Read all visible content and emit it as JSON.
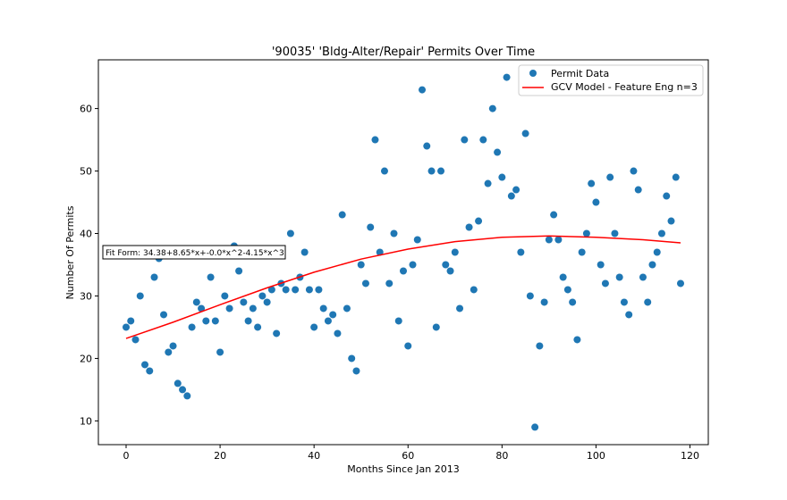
{
  "chart_data": {
    "type": "scatter",
    "title": "'90035' 'Bldg-Alter/Repair' Permits Over Time",
    "xlabel": "Months Since Jan 2013",
    "ylabel": "Number Of Permits",
    "xlim": [
      -5.9,
      123.9
    ],
    "ylim": [
      6.2,
      67.8
    ],
    "xticks": [
      0,
      20,
      40,
      60,
      80,
      100,
      120
    ],
    "yticks": [
      10,
      20,
      30,
      40,
      50,
      60
    ],
    "grid": false,
    "legend_position": "top-right",
    "annotation": "Fit Form: 34.38+8.65*x+-0.0*x^2-4.15*x^3",
    "series": [
      {
        "name": "Permit Data",
        "kind": "scatter",
        "color": "#1f77b4",
        "x": [
          0,
          1,
          2,
          3,
          4,
          5,
          6,
          7,
          8,
          9,
          10,
          11,
          12,
          13,
          14,
          15,
          16,
          17,
          18,
          19,
          20,
          21,
          22,
          23,
          24,
          25,
          26,
          27,
          28,
          29,
          30,
          31,
          32,
          33,
          34,
          35,
          36,
          37,
          38,
          39,
          40,
          41,
          42,
          43,
          44,
          45,
          46,
          47,
          48,
          49,
          50,
          51,
          52,
          53,
          54,
          55,
          56,
          57,
          58,
          59,
          60,
          61,
          62,
          63,
          64,
          65,
          66,
          67,
          68,
          69,
          70,
          71,
          72,
          73,
          74,
          75,
          76,
          77,
          78,
          79,
          80,
          81,
          82,
          83,
          84,
          85,
          86,
          87,
          88,
          89,
          90,
          91,
          92,
          93,
          94,
          95,
          96,
          97,
          98,
          99,
          100,
          101,
          102,
          103,
          104,
          105,
          106,
          107,
          108,
          109,
          110,
          111,
          112,
          113,
          114,
          115,
          116,
          117,
          118
        ],
        "y": [
          25,
          26,
          23,
          30,
          19,
          18,
          33,
          36,
          27,
          21,
          22,
          16,
          15,
          14,
          25,
          29,
          28,
          26,
          33,
          26,
          21,
          30,
          28,
          38,
          34,
          29,
          26,
          28,
          25,
          30,
          29,
          31,
          24,
          32,
          31,
          40,
          31,
          33,
          37,
          31,
          25,
          31,
          28,
          26,
          27,
          24,
          43,
          28,
          20,
          18,
          35,
          32,
          41,
          55,
          37,
          50,
          32,
          40,
          26,
          34,
          22,
          35,
          39,
          63,
          54,
          50,
          25,
          50,
          35,
          34,
          37,
          28,
          55,
          41,
          31,
          42,
          55,
          48,
          60,
          53,
          49,
          65,
          46,
          47,
          37,
          56,
          30,
          9,
          22,
          29,
          39,
          43,
          39,
          33,
          31,
          29,
          23,
          37,
          40,
          48,
          45,
          35,
          32,
          49,
          40,
          33,
          29,
          27,
          50,
          47,
          33,
          29,
          35,
          37,
          40,
          46,
          42,
          49,
          32
        ]
      },
      {
        "name": "GCV Model - Feature Eng n=3",
        "kind": "line",
        "color": "#ff0000",
        "x": [
          0,
          10,
          20,
          30,
          40,
          50,
          60,
          70,
          80,
          90,
          100,
          110,
          118
        ],
        "y": [
          23.2,
          25.8,
          28.6,
          31.3,
          33.8,
          35.9,
          37.5,
          38.7,
          39.4,
          39.6,
          39.4,
          39.0,
          38.5
        ]
      }
    ]
  }
}
